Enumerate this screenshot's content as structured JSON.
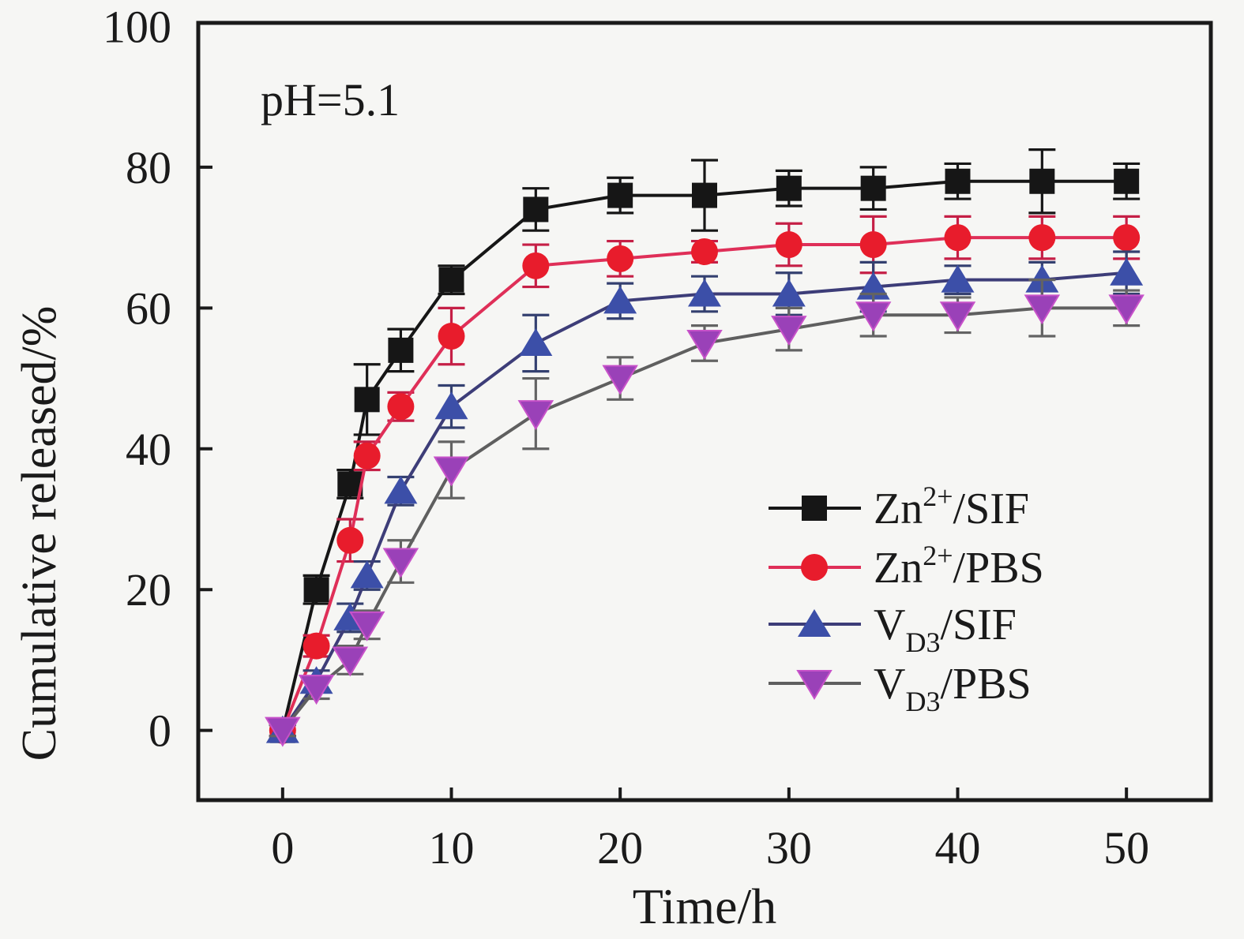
{
  "figure": {
    "background": "#f6f6f4",
    "frame_color": "#1a1a1a"
  },
  "chart_data": {
    "type": "line",
    "title": "",
    "annotation": "pH=5.1",
    "xlabel": "Time/h",
    "ylabel": "Cumulative released/%",
    "xlim": [
      -5,
      55
    ],
    "ylim": [
      -9.9,
      100.5
    ],
    "xticks": [
      0,
      10,
      20,
      30,
      40,
      50
    ],
    "yticks": [
      0,
      20,
      40,
      60,
      80,
      100
    ],
    "grid": false,
    "legend_position": "center-right",
    "x": [
      0,
      2,
      4,
      5,
      7,
      10,
      15,
      20,
      25,
      30,
      35,
      40,
      45,
      50
    ],
    "series": [
      {
        "name": "Zn2+/SIF",
        "legend_parts": [
          {
            "t": "Zn"
          },
          {
            "t": "2+",
            "pos": "sup"
          },
          {
            "t": "/SIF"
          }
        ],
        "marker": "square",
        "marker_color": "#161616",
        "line_color": "#161616",
        "err_color": "#161616",
        "values": [
          0,
          20,
          35,
          47,
          54,
          64,
          74,
          76,
          76,
          77,
          77,
          78,
          78,
          78
        ],
        "errors": [
          0.8,
          2,
          2,
          5,
          3,
          2,
          3,
          2.5,
          5,
          2.5,
          3,
          2.5,
          4.5,
          2.5
        ]
      },
      {
        "name": "Zn2+/PBS",
        "legend_parts": [
          {
            "t": "Zn"
          },
          {
            "t": "2+",
            "pos": "sup"
          },
          {
            "t": "/PBS"
          }
        ],
        "marker": "circle",
        "marker_color": "#e81c2c",
        "line_color": "#df2f58",
        "err_color": "#c51f46",
        "values": [
          0,
          12,
          27,
          39,
          46,
          56,
          66,
          67,
          68,
          69,
          69,
          70,
          70,
          70
        ],
        "errors": [
          0.8,
          1.5,
          3,
          2,
          2,
          4,
          3,
          2.5,
          1.5,
          3,
          4,
          3,
          3,
          3
        ]
      },
      {
        "name": "VD3/SIF",
        "legend_parts": [
          {
            "t": "V"
          },
          {
            "t": "D3",
            "pos": "sub"
          },
          {
            "t": "/SIF"
          }
        ],
        "marker": "triangle-up",
        "marker_color": "#3c4fa8",
        "line_color": "#3d3d78",
        "err_color": "#344070",
        "values": [
          0,
          7,
          16,
          22,
          34,
          46,
          55,
          61,
          62,
          62,
          63,
          64,
          64,
          65
        ],
        "errors": [
          0.8,
          1.5,
          2,
          2,
          2,
          3,
          4,
          2.5,
          2.5,
          3,
          3.5,
          2,
          2.5,
          3
        ]
      },
      {
        "name": "VD3/PBS",
        "legend_parts": [
          {
            "t": "V"
          },
          {
            "t": "D3",
            "pos": "sub"
          },
          {
            "t": "/PBS"
          }
        ],
        "marker": "triangle-down",
        "marker_color": "#9a41b8",
        "marker_edge": "#c752c9",
        "line_color": "#5f5f5f",
        "err_color": "#636363",
        "values": [
          0,
          6,
          10,
          15,
          24,
          37,
          45,
          50,
          55,
          57,
          59,
          59,
          60,
          60
        ],
        "errors": [
          0.8,
          1.5,
          2,
          2,
          3,
          4,
          5,
          3,
          2.5,
          3,
          3,
          2.5,
          4,
          2.5
        ]
      }
    ]
  }
}
